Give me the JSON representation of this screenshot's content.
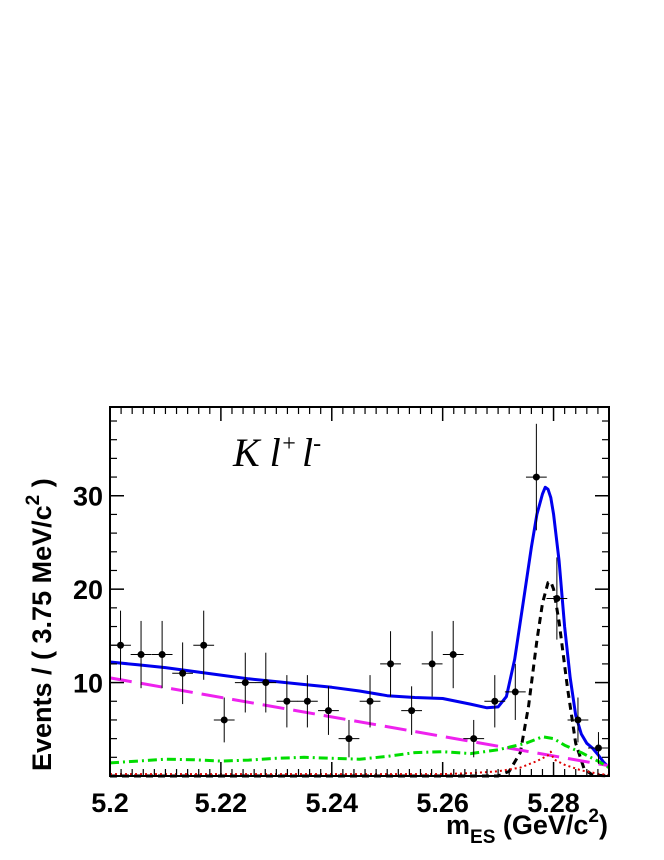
{
  "chart_data": {
    "type": "scatter",
    "annotation": {
      "main": "K l",
      "sup1": "+",
      "mid": "l",
      "sup2": "-"
    },
    "xlabel": {
      "main": "m",
      "sub": "ES",
      "rest": " (GeV/c",
      "sup": "2",
      "close": ")"
    },
    "ylabel": {
      "main": "Events / ( 3.75 MeV/c",
      "sup": "2",
      "close": " )"
    },
    "xlim": [
      5.2,
      5.29
    ],
    "ylim": [
      0,
      39.5
    ],
    "x_ticks": [
      "5.2",
      "5.22",
      "5.24",
      "5.26",
      "5.28"
    ],
    "x_tick_values": [
      5.2,
      5.22,
      5.24,
      5.26,
      5.28
    ],
    "y_ticks": [
      "10",
      "20",
      "30"
    ],
    "y_tick_values": [
      10,
      20,
      30
    ],
    "grid": false,
    "data_points": {
      "x_halfwidth": 0.001875,
      "points": [
        {
          "x": 5.2019,
          "y": 14,
          "err": 3.7
        },
        {
          "x": 5.2056,
          "y": 13,
          "err": 3.6
        },
        {
          "x": 5.2094,
          "y": 13,
          "err": 3.6
        },
        {
          "x": 5.2131,
          "y": 11,
          "err": 3.3
        },
        {
          "x": 5.2169,
          "y": 14,
          "err": 3.7
        },
        {
          "x": 5.2206,
          "y": 6,
          "err": 2.4
        },
        {
          "x": 5.2244,
          "y": 10,
          "err": 3.2
        },
        {
          "x": 5.2281,
          "y": 10,
          "err": 3.2
        },
        {
          "x": 5.2319,
          "y": 8,
          "err": 2.8
        },
        {
          "x": 5.2356,
          "y": 8,
          "err": 2.8
        },
        {
          "x": 5.2394,
          "y": 7,
          "err": 2.6
        },
        {
          "x": 5.2431,
          "y": 4,
          "err": 2.0
        },
        {
          "x": 5.2469,
          "y": 8,
          "err": 2.8
        },
        {
          "x": 5.2506,
          "y": 12,
          "err": 3.5
        },
        {
          "x": 5.2544,
          "y": 7,
          "err": 2.6
        },
        {
          "x": 5.2581,
          "y": 12,
          "err": 3.5
        },
        {
          "x": 5.2619,
          "y": 13,
          "err": 3.6
        },
        {
          "x": 5.2656,
          "y": 4,
          "err": 2.0
        },
        {
          "x": 5.2694,
          "y": 8,
          "err": 2.8
        },
        {
          "x": 5.2731,
          "y": 9,
          "err": 3.0
        },
        {
          "x": 5.2769,
          "y": 32,
          "err": 5.7
        },
        {
          "x": 5.2806,
          "y": 19,
          "err": 4.4
        },
        {
          "x": 5.2844,
          "y": 6,
          "err": 2.4
        },
        {
          "x": 5.2881,
          "y": 3,
          "err": 1.7
        }
      ]
    },
    "curves": [
      {
        "color": "#0000ee",
        "style": "solid",
        "x": [
          5.2,
          5.205,
          5.21,
          5.215,
          5.22,
          5.225,
          5.23,
          5.235,
          5.24,
          5.245,
          5.25,
          5.255,
          5.26,
          5.265,
          5.268,
          5.27,
          5.2715,
          5.273,
          5.2745,
          5.276,
          5.277,
          5.278,
          5.2785,
          5.279,
          5.2795,
          5.28,
          5.281,
          5.282,
          5.283,
          5.284,
          5.285,
          5.286,
          5.287,
          5.288,
          5.289,
          5.29
        ],
        "y": [
          12.2,
          11.9,
          11.6,
          11.2,
          10.8,
          10.4,
          10.1,
          9.8,
          9.5,
          9.1,
          8.6,
          8.4,
          8.3,
          7.7,
          7.3,
          7.4,
          8.5,
          12.5,
          18.5,
          24.5,
          28.0,
          30.2,
          30.9,
          30.7,
          29.8,
          28.0,
          23.0,
          16.0,
          10.5,
          6.5,
          4.5,
          3.5,
          3.0,
          2.3,
          1.5,
          0.9
        ]
      },
      {
        "color": "#000000",
        "style": "dashed",
        "x": [
          5.2,
          5.27,
          5.272,
          5.274,
          5.2755,
          5.277,
          5.278,
          5.279,
          5.2795,
          5.28,
          5.281,
          5.2825,
          5.284,
          5.2855,
          5.287,
          5.29
        ],
        "y": [
          0,
          0,
          0.5,
          2.5,
          7.5,
          14.5,
          18.5,
          20.7,
          20.8,
          20.0,
          16.5,
          9.5,
          3.5,
          0.8,
          0.1,
          0
        ]
      },
      {
        "color": "#ee22ee",
        "style": "longdash",
        "x": [
          5.2,
          5.29
        ],
        "y": [
          10.5,
          1.1
        ]
      },
      {
        "color": "#00dd00",
        "style": "dashdot",
        "x": [
          5.2,
          5.205,
          5.21,
          5.215,
          5.22,
          5.225,
          5.23,
          5.235,
          5.24,
          5.245,
          5.25,
          5.255,
          5.26,
          5.265,
          5.27,
          5.275,
          5.278,
          5.28,
          5.282,
          5.285,
          5.288,
          5.29
        ],
        "y": [
          1.4,
          1.6,
          1.8,
          1.75,
          1.6,
          1.7,
          1.9,
          2.0,
          1.9,
          1.8,
          2.1,
          2.5,
          2.6,
          2.4,
          2.8,
          3.5,
          4.2,
          4.0,
          3.3,
          2.5,
          1.6,
          0.9
        ]
      },
      {
        "color": "#dd0000",
        "style": "dotted",
        "x": [
          5.2,
          5.26,
          5.265,
          5.27,
          5.274,
          5.277,
          5.279,
          5.2795,
          5.28,
          5.282,
          5.285,
          5.288,
          5.29
        ],
        "y": [
          0.2,
          0.2,
          0.3,
          0.5,
          0.9,
          1.6,
          2.2,
          2.6,
          1.8,
          1.2,
          0.6,
          0.25,
          0.1
        ]
      }
    ]
  }
}
